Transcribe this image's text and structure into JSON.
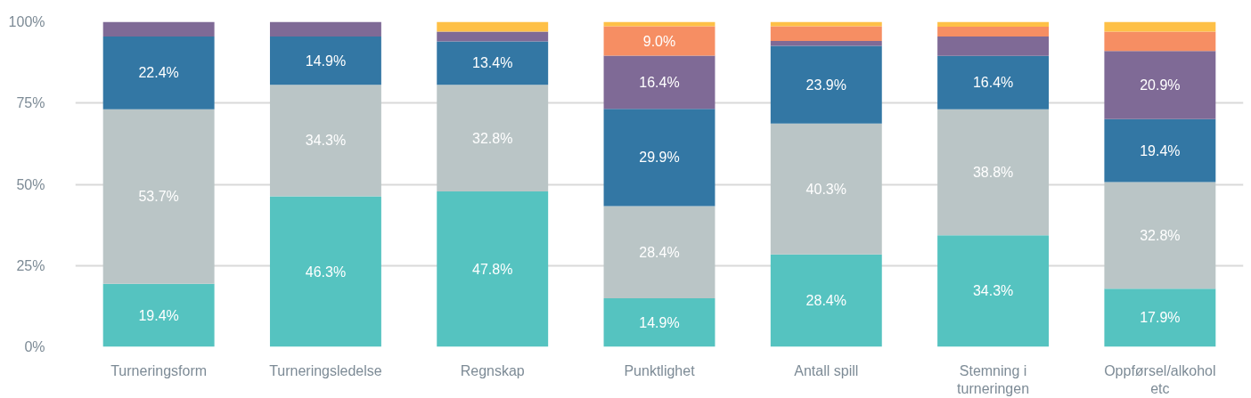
{
  "chart_data": {
    "type": "bar",
    "stacked": true,
    "categories": [
      "Turneringsform",
      "Turneringsledelse",
      "Regnskap",
      "Punktlighet",
      "Antall spill",
      "Stemning i turneringen",
      "Oppførsel/alkohol etc"
    ],
    "ylim": [
      0,
      100
    ],
    "yticks": [
      {
        "value": 0,
        "label": "0%"
      },
      {
        "value": 25,
        "label": "25%"
      },
      {
        "value": 50,
        "label": "50%"
      },
      {
        "value": 75,
        "label": "75%"
      },
      {
        "value": 100,
        "label": "100%"
      }
    ],
    "grid": "y",
    "series": [
      {
        "color": "#55c3c0",
        "values": [
          19.4,
          46.3,
          47.8,
          14.9,
          28.4,
          34.3,
          17.9
        ],
        "value_labels": [
          "19.4%",
          "46.3%",
          "47.8%",
          "14.9%",
          "28.4%",
          "34.3%",
          "17.9%"
        ]
      },
      {
        "color": "#bac5c6",
        "values": [
          53.7,
          34.3,
          32.8,
          28.4,
          40.3,
          38.8,
          32.8
        ],
        "value_labels": [
          "53.7%",
          "34.3%",
          "32.8%",
          "28.4%",
          "40.3%",
          "38.8%",
          "32.8%"
        ]
      },
      {
        "color": "#3377a4",
        "values": [
          22.4,
          14.9,
          13.4,
          29.9,
          23.9,
          16.4,
          19.4
        ],
        "value_labels": [
          "22.4%",
          "14.9%",
          "13.4%",
          "29.9%",
          "23.9%",
          "16.4%",
          "19.4%"
        ]
      },
      {
        "color": "#7f6a96",
        "values": [
          4.5,
          4.5,
          3.0,
          16.4,
          1.5,
          6.0,
          20.9
        ],
        "value_labels": [
          null,
          null,
          null,
          "16.4%",
          null,
          null,
          "20.9%"
        ]
      },
      {
        "color": "#f68e63",
        "values": [
          null,
          null,
          null,
          9.0,
          4.5,
          3.0,
          6.0
        ],
        "value_labels": [
          null,
          null,
          null,
          "9.0%",
          null,
          null,
          null
        ]
      },
      {
        "color": "#fec047",
        "values": [
          null,
          null,
          3.0,
          1.4,
          1.4,
          1.5,
          3.0
        ],
        "value_labels": [
          null,
          null,
          null,
          null,
          null,
          null,
          null
        ]
      }
    ]
  }
}
